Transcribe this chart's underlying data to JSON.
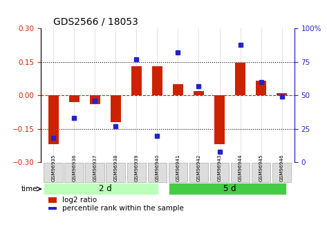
{
  "title": "GDS2566 / 18053",
  "samples": [
    "GSM96935",
    "GSM96936",
    "GSM96937",
    "GSM96938",
    "GSM96939",
    "GSM96940",
    "GSM96941",
    "GSM96942",
    "GSM96943",
    "GSM96944",
    "GSM96945",
    "GSM96946"
  ],
  "log2_ratio": [
    -0.22,
    -0.03,
    -0.04,
    -0.12,
    0.13,
    0.13,
    0.05,
    0.02,
    -0.22,
    0.145,
    0.065,
    0.01
  ],
  "percentile_rank": [
    18,
    33,
    46,
    27,
    77,
    20,
    82,
    57,
    8,
    88,
    60,
    49
  ],
  "group_labels": [
    "2 d",
    "5 d"
  ],
  "group_ranges": [
    6,
    6
  ],
  "ylim": [
    -0.3,
    0.3
  ],
  "y2lim": [
    0,
    100
  ],
  "yticks": [
    -0.3,
    -0.15,
    0.0,
    0.15,
    0.3
  ],
  "y2ticks": [
    0,
    25,
    50,
    75,
    100
  ],
  "hlines_dotted": [
    0.15,
    -0.15
  ],
  "bar_color": "#cc2200",
  "dot_color": "#2222cc",
  "group1_color": "#bbffbb",
  "group2_color": "#44cc44",
  "zero_line_color": "#cc2200",
  "bar_width": 0.5
}
